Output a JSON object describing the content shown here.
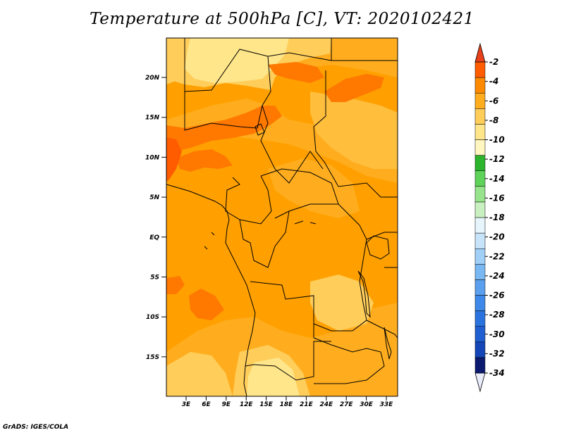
{
  "title": "Temperature at 500hPa [C], VT: 2020102421",
  "credit": "GrADS: IGES/COLA",
  "map": {
    "lat_labels": [
      "20N",
      "15N",
      "10N",
      "5N",
      "EQ",
      "5S",
      "10S",
      "15S"
    ],
    "lon_labels": [
      "3E",
      "6E",
      "9E",
      "12E",
      "15E",
      "18E",
      "21E",
      "24E",
      "27E",
      "30E",
      "33E"
    ]
  },
  "colorbar": {
    "labels": [
      "-2",
      "-4",
      "-6",
      "-8",
      "-10",
      "-12",
      "-14",
      "-16",
      "-18",
      "-20",
      "-22",
      "-24",
      "-26",
      "-28",
      "-30",
      "-32",
      "-34"
    ],
    "colors": [
      "#e8ecfb",
      "#0b1a6e",
      "#1446b8",
      "#1f5fd1",
      "#2a73df",
      "#3d88e8",
      "#5aa0ef",
      "#7ab8f4",
      "#a0cff7",
      "#c8e4fa",
      "#e6f5fb",
      "#c8f0c0",
      "#98e48c",
      "#5fd25a",
      "#2cb42c",
      "#fff6c0",
      "#ffe68a",
      "#ffcd5a",
      "#ffad1e",
      "#ff8a00",
      "#ff5c00",
      "#e8401a"
    ]
  }
}
